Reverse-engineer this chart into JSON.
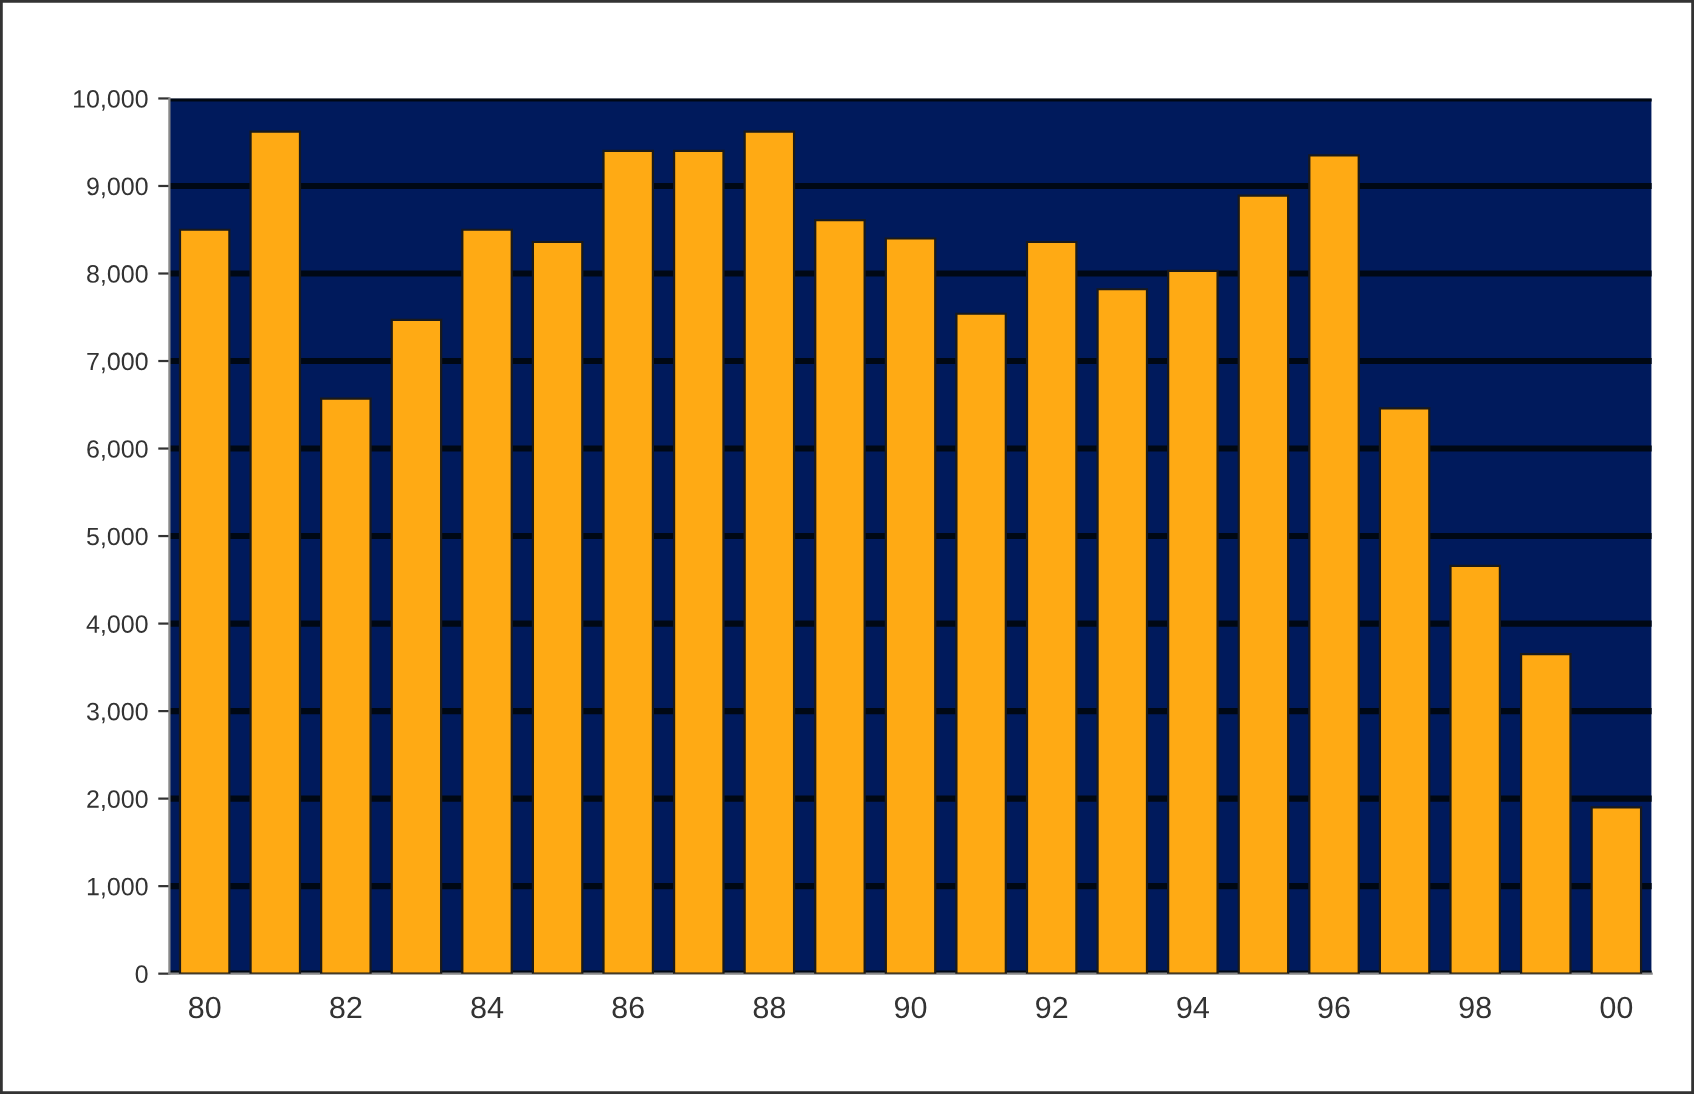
{
  "chart_data": {
    "type": "bar",
    "categories": [
      "80",
      null,
      "82",
      null,
      "84",
      null,
      "86",
      null,
      "88",
      null,
      "90",
      null,
      "92",
      null,
      "94",
      null,
      "96",
      null,
      "98",
      null,
      "00"
    ],
    "values": [
      8500,
      9620,
      6570,
      7470,
      8500,
      8360,
      9400,
      9400,
      9620,
      8610,
      8400,
      7540,
      8360,
      7820,
      8030,
      8890,
      9350,
      6460,
      4660,
      3650,
      1900
    ],
    "color": "#ffaa14",
    "ylim": [
      0,
      10000
    ],
    "yticks": [
      {
        "value": 0,
        "label": "0"
      },
      {
        "value": 1000,
        "label": "1,000"
      },
      {
        "value": 2000,
        "label": "2,000"
      },
      {
        "value": 3000,
        "label": "3,000"
      },
      {
        "value": 4000,
        "label": "4,000"
      },
      {
        "value": 5000,
        "label": "5,000"
      },
      {
        "value": 6000,
        "label": "6,000"
      },
      {
        "value": 7000,
        "label": "7,000"
      },
      {
        "value": 8000,
        "label": "8,000"
      },
      {
        "value": 9000,
        "label": "9,000"
      },
      {
        "value": 10000,
        "label": "10,000"
      }
    ],
    "bands": [
      {
        "axis": "y",
        "from": 0,
        "to": 10000,
        "color": "#001a5c"
      }
    ],
    "grid": "y"
  }
}
